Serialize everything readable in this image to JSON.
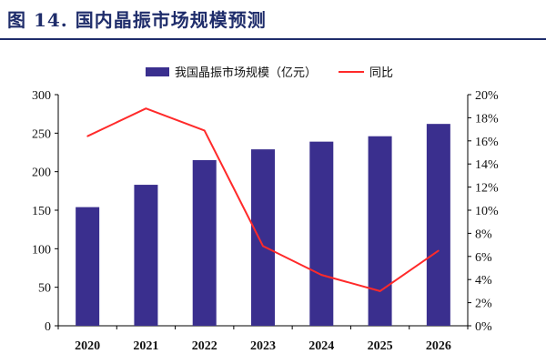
{
  "figure": {
    "title": "图 14. 国内晶振市场规模预测"
  },
  "colors": {
    "bar": "#3a2f8e",
    "line": "#ff2a2a",
    "title": "#1f2d6b"
  },
  "chart_data": {
    "type": "bar",
    "categories": [
      "2020",
      "2021",
      "2022",
      "2023",
      "2024",
      "2025",
      "2026"
    ],
    "series": [
      {
        "name": "我国晶振市场规模（亿元）",
        "type": "bar",
        "axis": "left",
        "values": [
          154,
          183,
          215,
          229,
          239,
          246,
          262
        ]
      },
      {
        "name": "同比",
        "type": "line",
        "axis": "right",
        "values": [
          16.4,
          18.8,
          16.9,
          6.9,
          4.4,
          3.0,
          6.5
        ]
      }
    ],
    "ylim_left": [
      0,
      300
    ],
    "yticks_left": [
      "0",
      "50",
      "100",
      "150",
      "200",
      "250",
      "300"
    ],
    "ylim_right": [
      0,
      20
    ],
    "yticks_right": [
      "0%",
      "2%",
      "4%",
      "6%",
      "8%",
      "10%",
      "12%",
      "14%",
      "16%",
      "18%",
      "20%"
    ],
    "grid": false,
    "legend_position": "top"
  }
}
